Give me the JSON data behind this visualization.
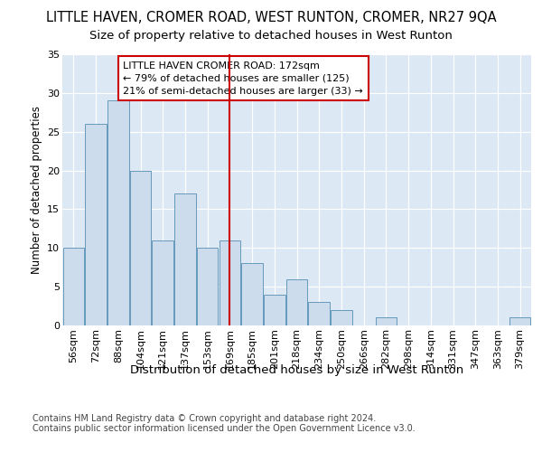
{
  "title": "LITTLE HAVEN, CROMER ROAD, WEST RUNTON, CROMER, NR27 9QA",
  "subtitle": "Size of property relative to detached houses in West Runton",
  "xlabel": "Distribution of detached houses by size in West Runton",
  "ylabel": "Number of detached properties",
  "categories": [
    "56sqm",
    "72sqm",
    "88sqm",
    "104sqm",
    "121sqm",
    "137sqm",
    "153sqm",
    "169sqm",
    "185sqm",
    "201sqm",
    "218sqm",
    "234sqm",
    "250sqm",
    "266sqm",
    "282sqm",
    "298sqm",
    "314sqm",
    "331sqm",
    "347sqm",
    "363sqm",
    "379sqm"
  ],
  "values": [
    10,
    26,
    29,
    20,
    11,
    17,
    10,
    11,
    8,
    4,
    6,
    3,
    2,
    0,
    1,
    0,
    0,
    0,
    0,
    0,
    1
  ],
  "bar_color": "#ccdcec",
  "bar_edge_color": "#6699bb",
  "reference_line_index": 7,
  "reference_line_color": "#cc0000",
  "annotation_line1": "LITTLE HAVEN CROMER ROAD: 172sqm",
  "annotation_line2": "← 79% of detached houses are smaller (125)",
  "annotation_line3": "21% of semi-detached houses are larger (33) →",
  "annotation_box_color": "#ffffff",
  "annotation_box_edge_color": "#cc0000",
  "ylim": [
    0,
    35
  ],
  "yticks": [
    0,
    5,
    10,
    15,
    20,
    25,
    30,
    35
  ],
  "bg_color": "#dce8f4",
  "fig_bg_color": "#ffffff",
  "footer_text": "Contains HM Land Registry data © Crown copyright and database right 2024.\nContains public sector information licensed under the Open Government Licence v3.0.",
  "title_fontsize": 10.5,
  "subtitle_fontsize": 9.5,
  "xlabel_fontsize": 9.5,
  "ylabel_fontsize": 8.5,
  "tick_fontsize": 8,
  "annotation_fontsize": 8,
  "footer_fontsize": 7
}
